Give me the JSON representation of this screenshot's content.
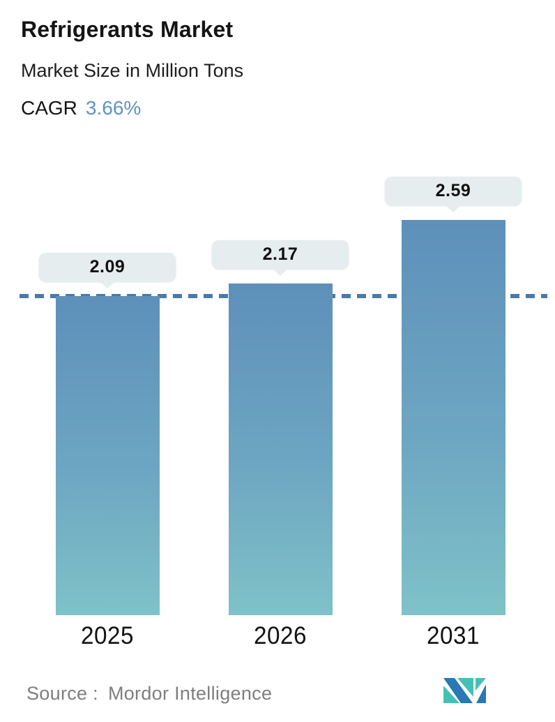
{
  "header": {
    "title": "Refrigerants Market",
    "subtitle": "Market Size in Million Tons",
    "cagr_label": "CAGR",
    "cagr_value": "3.66%"
  },
  "chart_data": {
    "type": "bar",
    "title": "Refrigerants Market",
    "subtitle": "Market Size in Million Tons",
    "cagr_percent": 3.66,
    "unit": "Million Tons",
    "categories": [
      "2025",
      "2026",
      "2031"
    ],
    "values": [
      2.09,
      2.17,
      2.59
    ],
    "value_labels": [
      "2.09",
      "2.17",
      "2.59"
    ],
    "reference_line": 2.09,
    "ylim": [
      0,
      3.1
    ],
    "grid": false,
    "legend": false,
    "bar_gradient_top": "#5e90ba",
    "bar_gradient_bottom": "#7fc2c8"
  },
  "footer": {
    "source_label": "Source :",
    "source_value": "Mordor Intelligence",
    "logo": "mordor-intelligence-logo"
  },
  "colors": {
    "accent_blue": "#6191c2",
    "dashed_line": "#4a7aa7",
    "bubble_bg": "#e5edee",
    "text_dark": "#141414",
    "text_gray": "#7e7e7e",
    "logo_blue": "#2a78b5",
    "logo_teal": "#45c0b6"
  }
}
